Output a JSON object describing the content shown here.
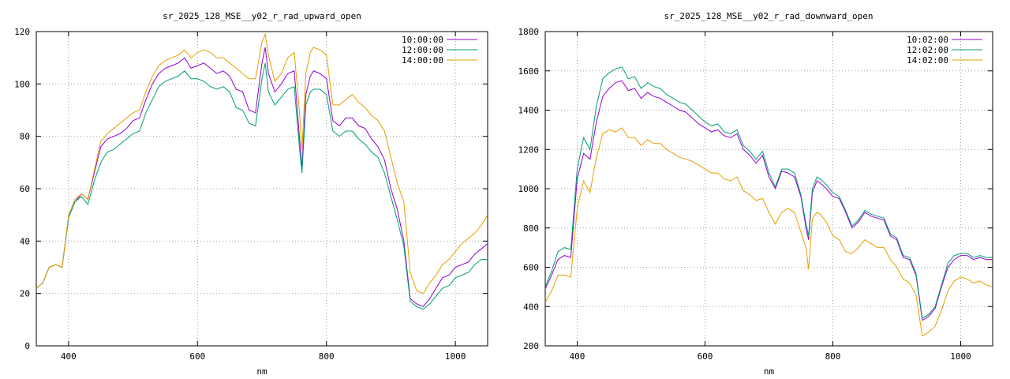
{
  "chart_data": [
    {
      "type": "line",
      "title": "sr_2025_128_MSE__y02_r_rad_upward_open",
      "xlabel": "nm",
      "ylabel": "",
      "xlim": [
        350,
        1050
      ],
      "ylim": [
        0,
        120
      ],
      "xticks": [
        400,
        600,
        800,
        1000
      ],
      "yticks": [
        0,
        20,
        40,
        60,
        80,
        100,
        120
      ],
      "grid": true,
      "legend": "top-right",
      "x": [
        350,
        360,
        370,
        380,
        390,
        400,
        410,
        420,
        430,
        440,
        450,
        460,
        470,
        480,
        490,
        500,
        510,
        520,
        530,
        540,
        550,
        560,
        570,
        580,
        590,
        600,
        610,
        620,
        630,
        640,
        650,
        660,
        670,
        680,
        690,
        700,
        705,
        710,
        720,
        730,
        740,
        750,
        758,
        762,
        768,
        775,
        780,
        790,
        800,
        810,
        820,
        830,
        840,
        850,
        860,
        870,
        880,
        890,
        900,
        910,
        920,
        930,
        940,
        950,
        960,
        970,
        980,
        990,
        1000,
        1010,
        1020,
        1030,
        1040,
        1050
      ],
      "series": [
        {
          "name": "10:00:00",
          "color": "#9400d3",
          "values": [
            22,
            24,
            30,
            31,
            30,
            49,
            55,
            58,
            56,
            66,
            76,
            79,
            80,
            81,
            83,
            86,
            87,
            94,
            100,
            104,
            106,
            107,
            108,
            110,
            106,
            107,
            108,
            106,
            104,
            105,
            103,
            98,
            97,
            90,
            89,
            108,
            114,
            104,
            97,
            100,
            104,
            105,
            80,
            68,
            96,
            103,
            105,
            104,
            102,
            86,
            84,
            87,
            87,
            84,
            83,
            79,
            76,
            71,
            60,
            52,
            40,
            18,
            16,
            15,
            18,
            22,
            26,
            27,
            30,
            31,
            32,
            35,
            37,
            39
          ]
        },
        {
          "name": "12:00:00",
          "color": "#009e73",
          "values": [
            22,
            24,
            30,
            31,
            30,
            49,
            55,
            57,
            54,
            63,
            70,
            74,
            75,
            77,
            79,
            81,
            82,
            89,
            94,
            99,
            101,
            102,
            103,
            105,
            102,
            102,
            101,
            99,
            98,
            99,
            97,
            91,
            90,
            85,
            84,
            102,
            108,
            97,
            92,
            95,
            98,
            99,
            76,
            66,
            92,
            97,
            98,
            98,
            96,
            82,
            80,
            82,
            82,
            79,
            77,
            74,
            72,
            66,
            57,
            48,
            38,
            17,
            15,
            14,
            16,
            19,
            22,
            23,
            26,
            27,
            28,
            31,
            33,
            33
          ]
        },
        {
          "name": "14:00:00",
          "color": "#e69f00",
          "values": [
            22,
            24,
            30,
            31,
            30,
            50,
            56,
            58,
            56,
            67,
            78,
            81,
            83,
            85,
            87,
            89,
            90,
            97,
            103,
            107,
            109,
            110,
            111,
            113,
            110,
            112,
            113,
            112,
            110,
            110,
            108,
            106,
            104,
            102,
            102,
            116,
            119,
            111,
            101,
            104,
            110,
            112,
            90,
            75,
            104,
            112,
            114,
            113,
            111,
            92,
            92,
            94,
            96,
            93,
            91,
            88,
            86,
            82,
            72,
            62,
            55,
            28,
            21,
            20,
            24,
            27,
            31,
            33,
            36,
            39,
            41,
            43,
            46,
            50
          ]
        }
      ]
    },
    {
      "type": "line",
      "title": "sr_2025_128_MSE__y02_r_rad_downward_open",
      "xlabel": "nm",
      "ylabel": "",
      "xlim": [
        350,
        1050
      ],
      "ylim": [
        200,
        1800
      ],
      "xticks": [
        400,
        600,
        800,
        1000
      ],
      "yticks": [
        200,
        400,
        600,
        800,
        1000,
        1200,
        1400,
        1600,
        1800
      ],
      "grid": true,
      "legend": "top-right",
      "x": [
        350,
        360,
        370,
        380,
        390,
        400,
        410,
        420,
        430,
        440,
        450,
        460,
        470,
        480,
        490,
        500,
        510,
        520,
        530,
        540,
        550,
        560,
        570,
        580,
        590,
        600,
        610,
        620,
        630,
        640,
        650,
        660,
        670,
        680,
        690,
        700,
        710,
        720,
        730,
        740,
        750,
        758,
        762,
        768,
        775,
        780,
        790,
        800,
        810,
        820,
        830,
        840,
        850,
        860,
        870,
        880,
        890,
        900,
        910,
        920,
        930,
        940,
        950,
        960,
        970,
        980,
        990,
        1000,
        1010,
        1020,
        1030,
        1040,
        1050
      ],
      "series": [
        {
          "name": "10:02:00",
          "color": "#9400d3",
          "values": [
            490,
            560,
            640,
            660,
            650,
            1050,
            1180,
            1150,
            1340,
            1470,
            1510,
            1540,
            1550,
            1500,
            1510,
            1460,
            1490,
            1470,
            1460,
            1440,
            1420,
            1400,
            1390,
            1360,
            1330,
            1310,
            1290,
            1300,
            1270,
            1260,
            1280,
            1200,
            1170,
            1130,
            1170,
            1060,
            1000,
            1090,
            1080,
            1060,
            960,
            800,
            740,
            980,
            1040,
            1030,
            1000,
            960,
            950,
            880,
            800,
            830,
            880,
            860,
            850,
            840,
            760,
            740,
            650,
            640,
            560,
            330,
            350,
            390,
            500,
            600,
            640,
            660,
            660,
            640,
            650,
            640,
            640
          ]
        },
        {
          "name": "12:02:00",
          "color": "#009e73",
          "values": [
            500,
            580,
            680,
            700,
            690,
            1100,
            1260,
            1200,
            1420,
            1560,
            1590,
            1610,
            1620,
            1560,
            1570,
            1510,
            1540,
            1520,
            1510,
            1480,
            1460,
            1440,
            1430,
            1400,
            1370,
            1340,
            1320,
            1330,
            1290,
            1280,
            1300,
            1220,
            1190,
            1150,
            1190,
            1080,
            1010,
            1100,
            1100,
            1080,
            970,
            820,
            760,
            1000,
            1060,
            1050,
            1020,
            980,
            960,
            890,
            810,
            840,
            890,
            870,
            860,
            850,
            770,
            750,
            660,
            650,
            570,
            340,
            360,
            400,
            510,
            620,
            660,
            670,
            670,
            650,
            660,
            650,
            650
          ]
        },
        {
          "name": "14:02:00",
          "color": "#e69f00",
          "values": [
            420,
            480,
            560,
            560,
            550,
            900,
            1040,
            980,
            1160,
            1280,
            1300,
            1290,
            1310,
            1260,
            1260,
            1220,
            1250,
            1230,
            1230,
            1200,
            1180,
            1160,
            1150,
            1140,
            1120,
            1100,
            1080,
            1080,
            1050,
            1040,
            1060,
            990,
            970,
            940,
            950,
            880,
            820,
            880,
            900,
            880,
            780,
            700,
            590,
            850,
            880,
            870,
            830,
            760,
            740,
            680,
            670,
            700,
            740,
            720,
            700,
            700,
            640,
            600,
            540,
            520,
            460,
            250,
            270,
            300,
            380,
            480,
            530,
            550,
            540,
            520,
            530,
            510,
            500
          ]
        }
      ]
    }
  ]
}
